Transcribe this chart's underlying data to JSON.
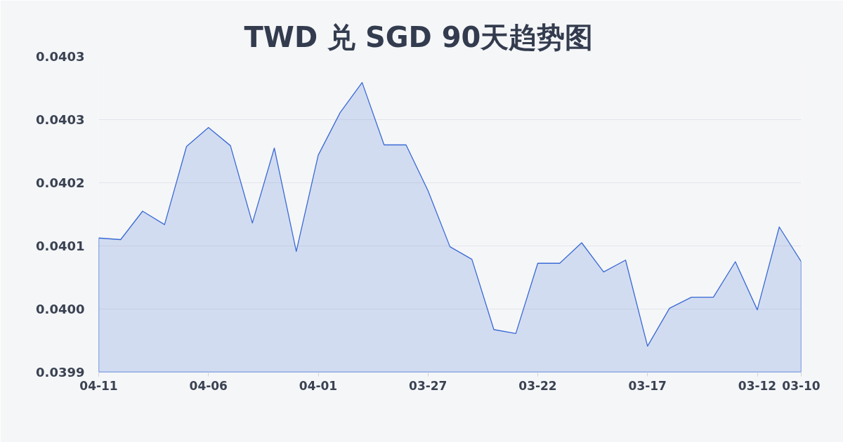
{
  "chart_data": {
    "type": "area",
    "title": "TWD 兑 SGD 90天趋势图",
    "categories": [
      "04-11",
      null,
      null,
      null,
      null,
      "04-06",
      null,
      null,
      null,
      null,
      "04-01",
      null,
      null,
      null,
      null,
      "03-27",
      null,
      null,
      null,
      null,
      "03-22",
      null,
      null,
      null,
      null,
      "03-17",
      null,
      null,
      null,
      null,
      "03-12",
      null,
      "03-10"
    ],
    "series": [
      {
        "color": "#3a6ad4",
        "values": [
          0.04011,
          0.040108,
          0.040144,
          0.040127,
          0.040226,
          0.04025,
          0.040227,
          0.040129,
          0.040224,
          0.040093,
          0.040215,
          0.040269,
          0.040307,
          0.040228,
          0.040228,
          0.04017,
          0.040099,
          0.040083,
          0.039994,
          0.039989,
          0.040078,
          0.040078,
          0.040104,
          0.040067,
          0.040082,
          0.039973,
          0.040021,
          0.040035,
          0.040035,
          0.04008,
          0.040019,
          0.040124,
          0.04008
        ]
      }
    ],
    "ylim": [
      0.03994,
      0.04034
    ],
    "yticks": [
      {
        "value": 0.03994,
        "label": "0.0399"
      },
      {
        "value": 0.04002,
        "label": "0.0400"
      },
      {
        "value": 0.0401,
        "label": "0.0401"
      },
      {
        "value": 0.04018,
        "label": "0.0402"
      },
      {
        "value": 0.04026,
        "label": "0.0403"
      },
      {
        "value": 0.04034,
        "label": "0.0403"
      }
    ],
    "grid": "y"
  }
}
